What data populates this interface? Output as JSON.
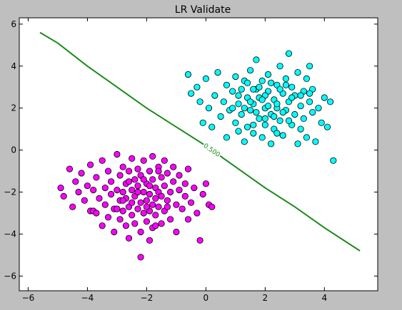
{
  "chart_data": {
    "type": "scatter",
    "title": "LR Validate",
    "xlabel": "",
    "ylabel": "",
    "xlim": [
      -6.3,
      5.8
    ],
    "ylim": [
      -6.7,
      6.3
    ],
    "xticks": [
      -6,
      -4,
      -2,
      0,
      2,
      4
    ],
    "yticks": [
      -6,
      -4,
      -2,
      0,
      2,
      4,
      6
    ],
    "xtick_labels": [
      "−6",
      "−4",
      "−2",
      "0",
      "2",
      "4"
    ],
    "ytick_labels": [
      "−6",
      "−4",
      "−2",
      "0",
      "2",
      "4",
      "6"
    ],
    "grid": false,
    "background": "#ffffff",
    "series": [
      {
        "color": "#ff00ff",
        "points": [
          [
            -4.9,
            -1.8
          ],
          [
            -4.8,
            -2.2
          ],
          [
            -4.6,
            -0.9
          ],
          [
            -4.5,
            -2.7
          ],
          [
            -4.4,
            -1.5
          ],
          [
            -4.3,
            -2.0
          ],
          [
            -4.2,
            -1.1
          ],
          [
            -4.1,
            -2.4
          ],
          [
            -4.0,
            -1.7
          ],
          [
            -3.9,
            -2.9
          ],
          [
            -3.9,
            -0.7
          ],
          [
            -3.8,
            -1.9
          ],
          [
            -3.8,
            -2.9
          ],
          [
            -3.7,
            -1.3
          ],
          [
            -3.6,
            -2.3
          ],
          [
            -3.5,
            -0.5
          ],
          [
            -3.5,
            -3.6
          ],
          [
            -3.4,
            -1.8
          ],
          [
            -3.4,
            -2.6
          ],
          [
            -3.3,
            -1.0
          ],
          [
            -3.3,
            -3.2
          ],
          [
            -3.2,
            -2.1
          ],
          [
            -3.2,
            -1.5
          ],
          [
            -3.1,
            -3.9
          ],
          [
            -3.1,
            -2.8
          ],
          [
            -3.0,
            -0.2
          ],
          [
            -3.0,
            -1.9
          ],
          [
            -2.9,
            -2.4
          ],
          [
            -2.9,
            -1.2
          ],
          [
            -2.9,
            -3.3
          ],
          [
            -2.8,
            -2.0
          ],
          [
            -2.8,
            -0.8
          ],
          [
            -2.8,
            -2.9
          ],
          [
            -2.7,
            -1.6
          ],
          [
            -2.7,
            -3.6
          ],
          [
            -2.7,
            -2.3
          ],
          [
            -2.6,
            -1.0
          ],
          [
            -2.6,
            -2.7
          ],
          [
            -2.6,
            -4.2
          ],
          [
            -2.5,
            -1.9
          ],
          [
            -2.5,
            -3.1
          ],
          [
            -2.5,
            -0.4
          ],
          [
            -2.4,
            -2.2
          ],
          [
            -2.4,
            -1.4
          ],
          [
            -2.4,
            -3.5
          ],
          [
            -2.3,
            -2.8
          ],
          [
            -2.3,
            -1.7
          ],
          [
            -2.3,
            -0.9
          ],
          [
            -2.2,
            -2.5
          ],
          [
            -2.2,
            -3.9
          ],
          [
            -2.2,
            -5.1
          ],
          [
            -2.2,
            -1.2
          ],
          [
            -2.1,
            -2.0
          ],
          [
            -2.1,
            -3.0
          ],
          [
            -2.1,
            -0.5
          ],
          [
            -2.0,
            -1.6
          ],
          [
            -2.0,
            -2.4
          ],
          [
            -2.0,
            -3.4
          ],
          [
            -1.9,
            -1.0
          ],
          [
            -1.9,
            -2.1
          ],
          [
            -1.9,
            -2.9
          ],
          [
            -1.9,
            -4.3
          ],
          [
            -1.8,
            -1.4
          ],
          [
            -1.8,
            -2.6
          ],
          [
            -1.8,
            -0.3
          ],
          [
            -1.8,
            -3.7
          ],
          [
            -1.7,
            -1.8
          ],
          [
            -1.7,
            -2.3
          ],
          [
            -1.7,
            -3.1
          ],
          [
            -1.6,
            -0.8
          ],
          [
            -1.6,
            -2.0
          ],
          [
            -1.6,
            -2.7
          ],
          [
            -1.5,
            -1.3
          ],
          [
            -1.5,
            -3.5
          ],
          [
            -1.5,
            -2.2
          ],
          [
            -1.4,
            -1.7
          ],
          [
            -1.4,
            -0.5
          ],
          [
            -1.4,
            -2.9
          ],
          [
            -1.3,
            -2.4
          ],
          [
            -1.3,
            -1.1
          ],
          [
            -1.2,
            -3.3
          ],
          [
            -1.2,
            -2.0
          ],
          [
            -1.1,
            -1.5
          ],
          [
            -1.1,
            -0.8
          ],
          [
            -1.0,
            -2.6
          ],
          [
            -1.0,
            -3.9
          ],
          [
            -0.9,
            -1.9
          ],
          [
            -0.9,
            -1.2
          ],
          [
            -0.8,
            -2.8
          ],
          [
            -0.7,
            -2.2
          ],
          [
            -0.7,
            -1.6
          ],
          [
            -0.6,
            -3.3
          ],
          [
            -0.6,
            -0.9
          ],
          [
            -0.5,
            -2.5
          ],
          [
            -0.4,
            -1.8
          ],
          [
            -0.3,
            -3.0
          ],
          [
            -0.2,
            -4.3
          ],
          [
            -0.1,
            -2.1
          ],
          [
            0.0,
            -1.6
          ],
          [
            0.1,
            -2.6
          ],
          [
            0.2,
            -2.7
          ],
          [
            -3.7,
            -3.0
          ],
          [
            -2.6,
            -1.5
          ],
          [
            -2.0,
            -2.7
          ],
          [
            -1.6,
            -1.0
          ],
          [
            -2.3,
            -2.0
          ],
          [
            -1.9,
            -1.7
          ],
          [
            -2.5,
            -2.5
          ],
          [
            -1.3,
            -2.7
          ],
          [
            -2.8,
            -2.4
          ],
          [
            -1.7,
            -3.6
          ],
          [
            -2.1,
            -1.4
          ],
          [
            -3.0,
            -2.8
          ]
        ]
      },
      {
        "color": "#00ffff",
        "points": [
          [
            -0.6,
            3.6
          ],
          [
            -0.5,
            2.7
          ],
          [
            -0.3,
            3.0
          ],
          [
            -0.2,
            2.3
          ],
          [
            -0.1,
            1.3
          ],
          [
            0.0,
            3.4
          ],
          [
            0.1,
            2.0
          ],
          [
            0.2,
            1.1
          ],
          [
            0.3,
            2.6
          ],
          [
            0.4,
            3.7
          ],
          [
            0.5,
            1.6
          ],
          [
            0.6,
            2.3
          ],
          [
            0.7,
            0.6
          ],
          [
            0.7,
            3.1
          ],
          [
            0.8,
            1.9
          ],
          [
            0.9,
            2.8
          ],
          [
            1.0,
            1.3
          ],
          [
            1.0,
            3.5
          ],
          [
            1.1,
            2.2
          ],
          [
            1.1,
            0.9
          ],
          [
            1.2,
            1.7
          ],
          [
            1.2,
            2.9
          ],
          [
            1.3,
            3.3
          ],
          [
            1.3,
            0.4
          ],
          [
            1.4,
            2.5
          ],
          [
            1.4,
            1.1
          ],
          [
            1.5,
            1.9
          ],
          [
            1.5,
            3.8
          ],
          [
            1.6,
            2.2
          ],
          [
            1.6,
            0.8
          ],
          [
            1.7,
            2.9
          ],
          [
            1.7,
            4.3
          ],
          [
            1.8,
            1.5
          ],
          [
            1.8,
            2.5
          ],
          [
            1.9,
            3.3
          ],
          [
            1.9,
            0.6
          ],
          [
            2.0,
            2.0
          ],
          [
            2.0,
            1.2
          ],
          [
            2.1,
            2.8
          ],
          [
            2.1,
            3.6
          ],
          [
            2.2,
            1.7
          ],
          [
            2.2,
            0.3
          ],
          [
            2.3,
            2.4
          ],
          [
            2.3,
            1.0
          ],
          [
            2.4,
            3.1
          ],
          [
            2.4,
            2.0
          ],
          [
            2.5,
            1.4
          ],
          [
            2.5,
            4.0
          ],
          [
            2.6,
            2.7
          ],
          [
            2.6,
            0.7
          ],
          [
            2.7,
            1.9
          ],
          [
            2.7,
            3.4
          ],
          [
            2.8,
            4.6
          ],
          [
            2.8,
            2.3
          ],
          [
            2.9,
            1.2
          ],
          [
            2.9,
            3.0
          ],
          [
            3.0,
            1.7
          ],
          [
            3.0,
            2.6
          ],
          [
            3.1,
            0.3
          ],
          [
            3.1,
            3.7
          ],
          [
            3.2,
            2.1
          ],
          [
            3.2,
            1.0
          ],
          [
            3.3,
            2.8
          ],
          [
            3.3,
            1.5
          ],
          [
            3.4,
            3.4
          ],
          [
            3.4,
            0.6
          ],
          [
            3.5,
            2.3
          ],
          [
            3.5,
            4.0
          ],
          [
            3.6,
            1.8
          ],
          [
            3.6,
            2.9
          ],
          [
            3.7,
            0.4
          ],
          [
            3.8,
            2.0
          ],
          [
            3.9,
            1.3
          ],
          [
            4.0,
            2.5
          ],
          [
            4.1,
            1.1
          ],
          [
            4.2,
            2.3
          ],
          [
            4.3,
            -0.5
          ],
          [
            2.0,
            2.6
          ],
          [
            1.6,
            2.9
          ],
          [
            2.4,
            2.2
          ],
          [
            1.9,
            2.4
          ],
          [
            2.2,
            3.2
          ],
          [
            1.5,
            2.3
          ],
          [
            2.6,
            1.8
          ],
          [
            1.3,
            2.0
          ],
          [
            2.9,
            2.5
          ],
          [
            2.3,
            1.6
          ],
          [
            1.8,
            3.0
          ],
          [
            2.1,
            2.1
          ],
          [
            2.5,
            2.9
          ],
          [
            1.7,
            1.8
          ],
          [
            3.2,
            2.6
          ],
          [
            2.0,
            1.5
          ],
          [
            1.1,
            2.6
          ],
          [
            2.7,
            3.1
          ],
          [
            1.4,
            3.2
          ],
          [
            2.8,
            1.4
          ],
          [
            3.5,
            2.7
          ],
          [
            0.9,
            2.0
          ],
          [
            2.4,
            0.8
          ],
          [
            1.6,
            1.2
          ]
        ]
      }
    ],
    "lines": [
      {
        "color": "#1a8a1a",
        "label": "0.500",
        "label_at": [
          0.2,
          0.0
        ],
        "points": [
          [
            -5.6,
            5.6
          ],
          [
            -5.0,
            5.1
          ],
          [
            -4.0,
            4.0
          ],
          [
            -3.0,
            3.0
          ],
          [
            -2.0,
            2.0
          ],
          [
            -1.0,
            1.1
          ],
          [
            0.0,
            0.2
          ],
          [
            1.0,
            -0.8
          ],
          [
            2.0,
            -1.8
          ],
          [
            3.0,
            -2.7
          ],
          [
            4.0,
            -3.7
          ],
          [
            5.2,
            -4.8
          ]
        ]
      }
    ]
  }
}
